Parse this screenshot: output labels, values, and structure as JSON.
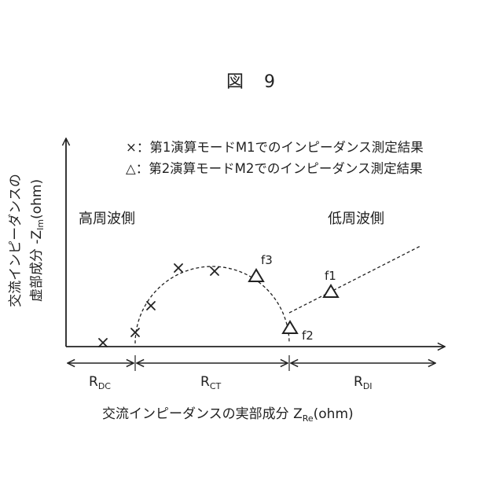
{
  "figure": {
    "title": "図　9",
    "legend": {
      "cross_text": "×：第1演算モードM1でのインピーダンス測定結果",
      "triangle_text": "△：第2演算モードM2でのインピーダンス測定結果"
    },
    "regions": {
      "high": "高周波側",
      "low": "低周波側"
    },
    "y_axis": {
      "line1": "交流インピーダンスの",
      "line2_main": "虚部成分 -Z",
      "line2_sub": "Im",
      "line2_unit": "(ohm)"
    },
    "x_axis": {
      "main": "交流インピーダンスの実部成分 Z",
      "sub": "Re",
      "unit": "(ohm)"
    },
    "resistances": [
      {
        "id": "rdc",
        "base": "R",
        "sub": "DC"
      },
      {
        "id": "rct",
        "base": "R",
        "sub": "CT"
      },
      {
        "id": "rdi",
        "base": "R",
        "sub": "DI"
      }
    ],
    "point_labels": {
      "f1": "f1",
      "f2": "f2",
      "f3": "f3"
    },
    "colors": {
      "ink": "#222222",
      "background": "#ffffff"
    }
  }
}
